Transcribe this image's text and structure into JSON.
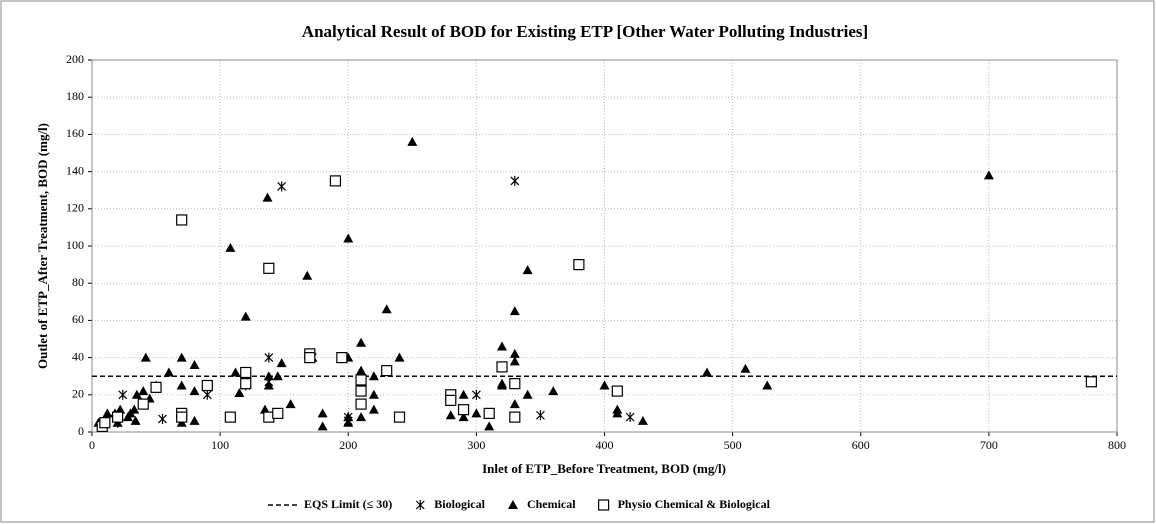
{
  "chart_data": {
    "type": "scatter",
    "title": "Analytical Result of BOD for Existing ETP [Other Water Polluting Industries]",
    "x_label": "Inlet of ETP_Before Treatment, BOD (mg/l)",
    "y_label": "Outlet of ETP_After Treatment, BOD (mg/l)",
    "xlim": [
      0,
      800
    ],
    "xticks": [
      0,
      100,
      200,
      300,
      400,
      500,
      600,
      700,
      800
    ],
    "ylim": [
      0,
      200
    ],
    "yticks": [
      0,
      20,
      40,
      60,
      80,
      100,
      120,
      140,
      160,
      180,
      200
    ],
    "grid": true,
    "legend": "bottom",
    "reference_line": {
      "name": "EQS Limit (≤ 30)",
      "value": 30,
      "color": "#000"
    },
    "series": [
      {
        "name": "Biological",
        "marker": "asterisk",
        "color": "#000",
        "x": [
          24,
          55,
          90,
          120,
          138,
          138,
          148,
          172,
          200,
          200,
          230,
          300,
          330,
          350,
          420,
          20
        ],
        "values": [
          20,
          7,
          20,
          25,
          40,
          27,
          132,
          40,
          8,
          6,
          33,
          20,
          135,
          9,
          8,
          5
        ]
      },
      {
        "name": "Chemical",
        "marker": "triangle",
        "color": "#000",
        "x": [
          5,
          12,
          18,
          20,
          22,
          28,
          30,
          33,
          34,
          35,
          40,
          42,
          45,
          50,
          60,
          70,
          70,
          70,
          70,
          80,
          80,
          80,
          108,
          112,
          115,
          120,
          135,
          137,
          138,
          138,
          145,
          148,
          155,
          168,
          172,
          180,
          180,
          200,
          200,
          200,
          200,
          210,
          210,
          210,
          220,
          220,
          220,
          230,
          240,
          250,
          280,
          290,
          290,
          300,
          310,
          320,
          320,
          320,
          320,
          330,
          330,
          330,
          330,
          340,
          340,
          360,
          400,
          410,
          410,
          430,
          480,
          510,
          527,
          700
        ],
        "values": [
          5,
          10,
          10,
          5,
          12,
          8,
          10,
          12,
          6,
          20,
          22,
          40,
          18,
          25,
          32,
          40,
          25,
          8,
          5,
          22,
          36,
          6,
          99,
          32,
          21,
          62,
          12,
          126,
          25,
          30,
          30,
          37,
          15,
          84,
          40,
          10,
          3,
          104,
          40,
          8,
          5,
          48,
          33,
          8,
          30,
          20,
          12,
          66,
          40,
          156,
          9,
          20,
          8,
          10,
          3,
          46,
          35,
          26,
          25,
          65,
          42,
          38,
          15,
          87,
          20,
          22,
          25,
          12,
          10,
          6,
          32,
          34,
          25,
          138
        ]
      },
      {
        "name": "Physio Chemical & Biological",
        "marker": "square",
        "color": "#000",
        "x": [
          8,
          10,
          20,
          40,
          50,
          70,
          70,
          70,
          90,
          108,
          120,
          120,
          138,
          138,
          145,
          170,
          170,
          190,
          195,
          210,
          210,
          210,
          230,
          240,
          280,
          280,
          290,
          310,
          320,
          330,
          330,
          380,
          410,
          780
        ],
        "values": [
          3,
          5,
          8,
          15,
          24,
          114,
          10,
          8,
          25,
          8,
          32,
          26,
          88,
          8,
          10,
          42,
          40,
          135,
          40,
          28,
          22,
          15,
          33,
          8,
          20,
          17,
          12,
          10,
          35,
          26,
          8,
          90,
          22,
          27
        ]
      }
    ]
  }
}
